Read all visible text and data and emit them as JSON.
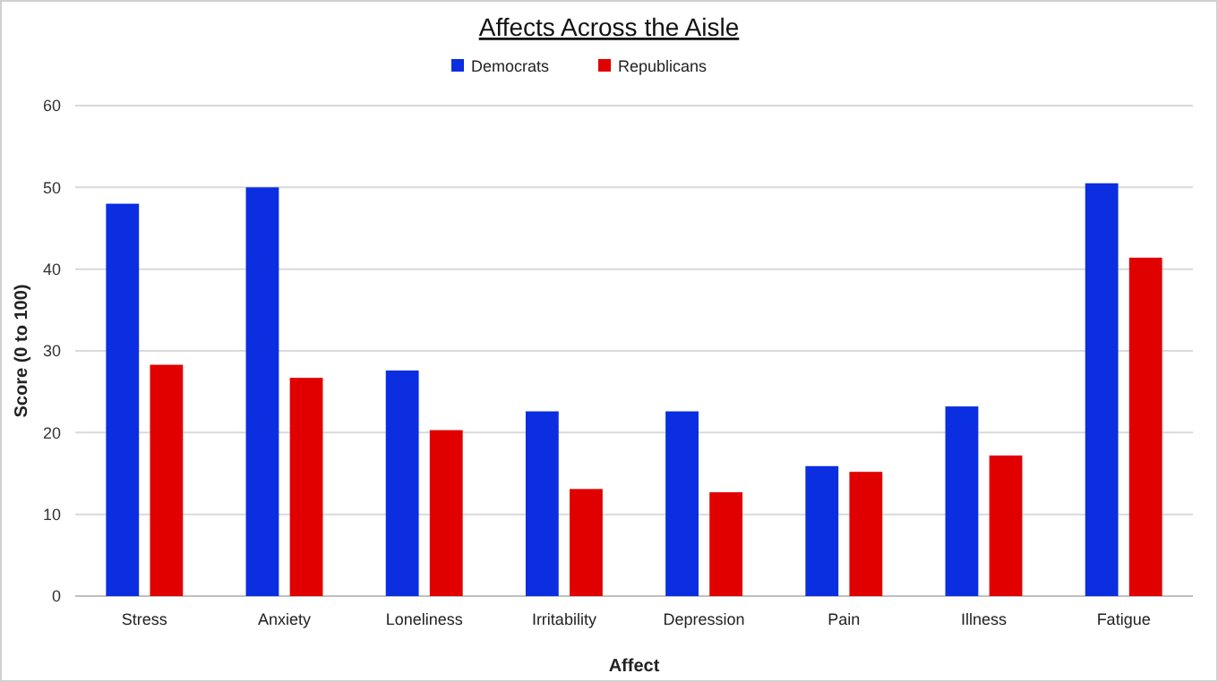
{
  "chart_data": {
    "type": "bar",
    "title": "Affects Across the Aisle",
    "xlabel": "Affect",
    "ylabel": "Score (0 to 100)",
    "categories": [
      "Stress",
      "Anxiety",
      "Loneliness",
      "Irritability",
      "Depression",
      "Pain",
      "Illness",
      "Fatigue"
    ],
    "series": [
      {
        "name": "Democrats",
        "color": "#0a2ee0",
        "values": [
          48,
          50,
          27.6,
          22.6,
          22.6,
          15.9,
          23.2,
          50.5
        ]
      },
      {
        "name": "Republicans",
        "color": "#e00000",
        "values": [
          28.3,
          26.7,
          20.3,
          13.1,
          12.7,
          15.2,
          17.2,
          41.4
        ]
      }
    ],
    "ylim": [
      0,
      60
    ],
    "yticks": [
      0,
      10,
      20,
      30,
      40,
      50,
      60
    ],
    "grid": "y",
    "legend": "top"
  }
}
